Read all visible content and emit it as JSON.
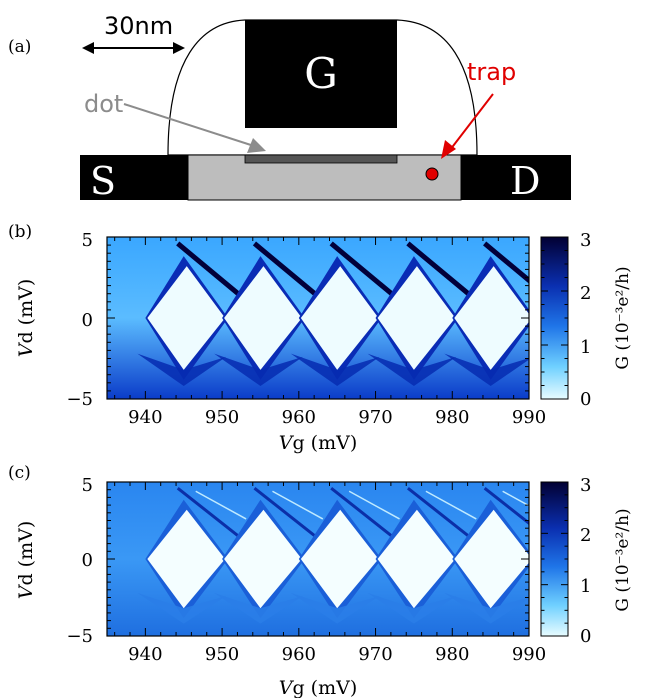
{
  "panels": {
    "a": {
      "label": "(a)",
      "scale_label": "30nm",
      "gate_label": "G",
      "source_label": "S",
      "drain_label": "D",
      "dot_label": "dot",
      "trap_label": "trap",
      "trap_color": "#e00000",
      "dot_label_color": "#8c8c8c"
    },
    "b": {
      "label": "(b)",
      "xlabel_var": "V",
      "xlabel_sub": "g (mV)",
      "ylabel_var": "V",
      "ylabel_sub": "d (mV)",
      "colorbar_label": "G (10⁻³e²/h)",
      "x_ticks": [
        "940",
        "950",
        "960",
        "970",
        "980",
        "990"
      ],
      "y_ticks": [
        "5",
        "0",
        "−5"
      ],
      "colorbar_ticks": [
        "3",
        "2",
        "1",
        "0"
      ]
    },
    "c": {
      "label": "(c)",
      "xlabel_var": "V",
      "xlabel_sub": "g (mV)",
      "ylabel_var": "V",
      "ylabel_sub": "d (mV)",
      "colorbar_label": "G (10⁻³e²/h)",
      "x_ticks": [
        "940",
        "950",
        "960",
        "970",
        "980",
        "990"
      ],
      "y_ticks": [
        "5",
        "0",
        "−5"
      ],
      "colorbar_ticks": [
        "3",
        "2",
        "1",
        "0"
      ]
    }
  },
  "chart_data": [
    {
      "type": "heatmap",
      "panel": "b",
      "description_source": "measured",
      "xlabel": "Vg (mV)",
      "ylabel": "Vd (mV)",
      "xlim": [
        935,
        990
      ],
      "ylim": [
        -5,
        5
      ],
      "x_ticks": [
        940,
        950,
        960,
        970,
        980,
        990
      ],
      "y_ticks": [
        -5,
        0,
        5
      ],
      "colorbar": {
        "label": "G (10⁻³e²/h)",
        "range": [
          0,
          3
        ],
        "ticks": [
          0,
          1,
          2,
          3
        ]
      },
      "diamond_centers_vg": [
        945,
        955,
        965,
        975,
        985
      ],
      "diamond_half_height_vd": 3.2
    },
    {
      "type": "heatmap",
      "panel": "c",
      "description_source": "simulated",
      "xlabel": "Vg (mV)",
      "ylabel": "Vd (mV)",
      "xlim": [
        935,
        990
      ],
      "ylim": [
        -5,
        5
      ],
      "x_ticks": [
        940,
        950,
        960,
        970,
        980,
        990
      ],
      "y_ticks": [
        -5,
        0,
        5
      ],
      "colorbar": {
        "label": "G (10⁻³e²/h)",
        "range": [
          0,
          3
        ],
        "ticks": [
          0,
          1,
          2,
          3
        ]
      },
      "diamond_centers_vg": [
        945,
        955,
        965,
        975,
        985
      ],
      "diamond_half_height_vd": 3.2
    }
  ],
  "colors": {
    "low": "#e6fbff",
    "mid": "#1e6fe0",
    "high": "#03003a"
  }
}
